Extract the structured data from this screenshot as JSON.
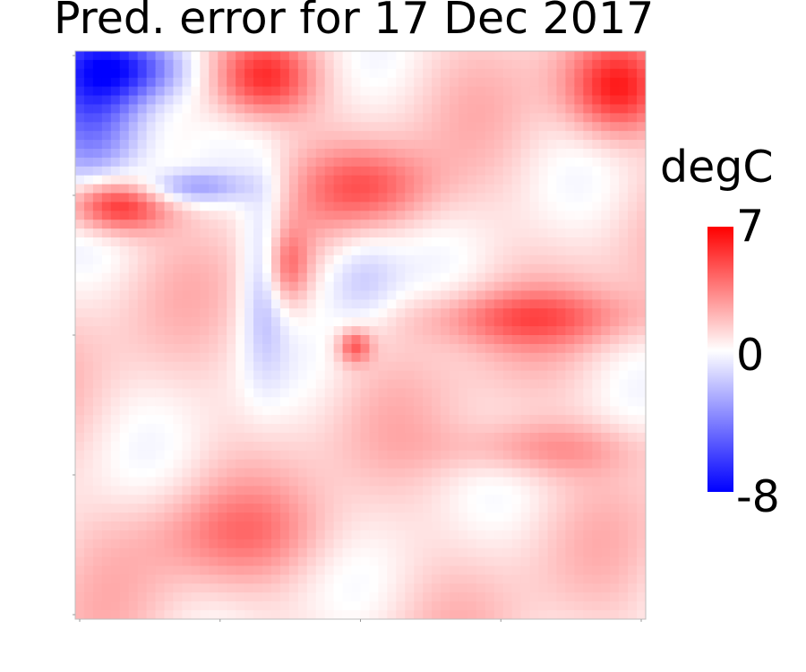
{
  "chart_data": {
    "type": "heatmap",
    "title": "Pred. error for 17 Dec 2017",
    "colorbar": {
      "unit_label": "degC",
      "max_label": "7",
      "mid_label": "0",
      "min_label": "-8",
      "vmax": 7,
      "vmid": 0,
      "vmin": -8,
      "colormap": [
        "#0000ff",
        "#ffffff",
        "#ff0000"
      ]
    },
    "grid_size": 64,
    "xticks": 5,
    "yticks": 5,
    "features": [
      {
        "name": "cold-core-top-left",
        "cx": 0.03,
        "cy": 0.07,
        "rx": 0.1,
        "ry": 0.16,
        "value": -7.5
      },
      {
        "name": "cold-top-left-upper",
        "cx": 0.11,
        "cy": 0.03,
        "rx": 0.1,
        "ry": 0.06,
        "value": -5
      },
      {
        "name": "warm-band-left",
        "cx": 0.07,
        "cy": 0.27,
        "rx": 0.09,
        "ry": 0.05,
        "value": 6.5
      },
      {
        "name": "warm-top-center",
        "cx": 0.33,
        "cy": 0.05,
        "rx": 0.09,
        "ry": 0.07,
        "value": 5
      },
      {
        "name": "warm-top-right",
        "cx": 0.95,
        "cy": 0.07,
        "rx": 0.09,
        "ry": 0.08,
        "value": 5
      },
      {
        "name": "warm-upper-mid",
        "cx": 0.52,
        "cy": 0.24,
        "rx": 0.12,
        "ry": 0.07,
        "value": 3
      },
      {
        "name": "cold-eddy-left",
        "cx": 0.33,
        "cy": 0.4,
        "rx": 0.04,
        "ry": 0.16,
        "value": -3
      },
      {
        "name": "warm-eddy-center",
        "cx": 0.37,
        "cy": 0.38,
        "rx": 0.04,
        "ry": 0.07,
        "value": 3.5
      },
      {
        "name": "cold-eddy-right",
        "cx": 0.5,
        "cy": 0.4,
        "rx": 0.07,
        "ry": 0.09,
        "value": -2.5
      },
      {
        "name": "warm-spot-center",
        "cx": 0.49,
        "cy": 0.52,
        "rx": 0.03,
        "ry": 0.03,
        "value": 4
      },
      {
        "name": "warm-band-right",
        "cx": 0.79,
        "cy": 0.47,
        "rx": 0.21,
        "ry": 0.05,
        "value": 3
      },
      {
        "name": "warm-right-lower",
        "cx": 0.82,
        "cy": 0.7,
        "rx": 0.17,
        "ry": 0.05,
        "value": 2.5
      },
      {
        "name": "warm-bottom-left",
        "cx": 0.28,
        "cy": 0.85,
        "rx": 0.18,
        "ry": 0.08,
        "value": 2
      },
      {
        "name": "cold-thin-band",
        "cx": 0.2,
        "cy": 0.24,
        "rx": 0.1,
        "ry": 0.03,
        "value": -3.5
      }
    ]
  }
}
